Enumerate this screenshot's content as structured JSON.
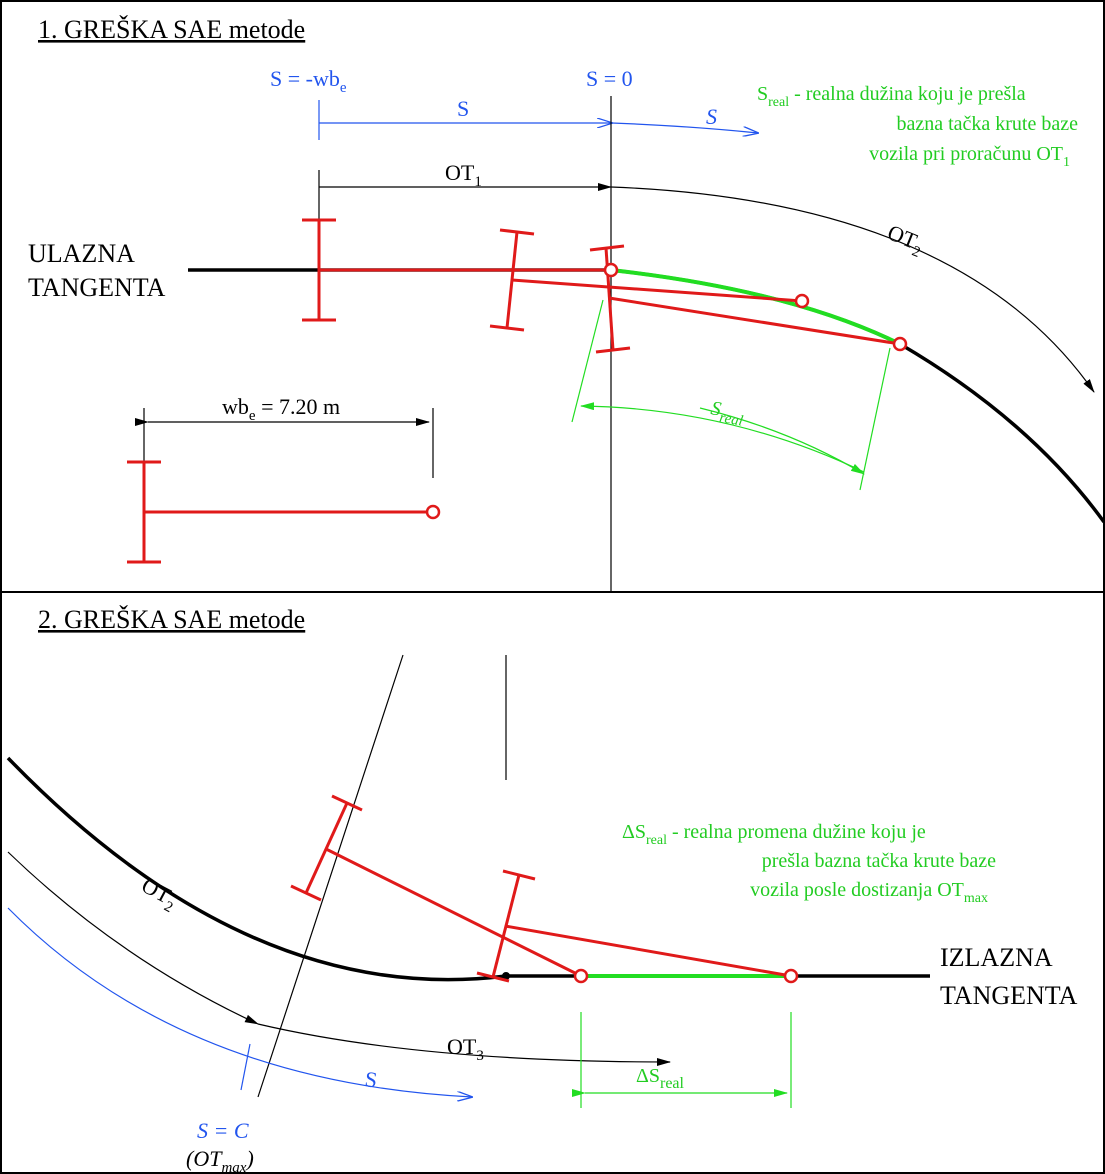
{
  "panel1": {
    "title": "1. GREŠKA SAE metode",
    "label_s_minus_main": "S = -wb",
    "label_s_minus_sub": "e",
    "label_s_zero": "S = 0",
    "label_s_mid": "S",
    "label_s_arc": "S",
    "label_ot1_main": "OT",
    "label_ot1_sub": "1",
    "label_ot2_main": "OT",
    "label_ot2_sub": "2",
    "entry_tangent_line1": "ULAZNA",
    "entry_tangent_line2": "TANGENTA",
    "wheelbase_main": "wb",
    "wheelbase_sub": "e",
    "wheelbase_value": " = 7.20 m",
    "sreal_dim_main": "S",
    "sreal_dim_sub": "real",
    "note_symbol_main": "S",
    "note_symbol_sub": "real",
    "note_line1": " - realna dužina koju je prešla",
    "note_line2": "bazna tačka krute baze",
    "note_line3_main": "vozila pri proračunu OT",
    "note_line3_sub": "1"
  },
  "panel2": {
    "title": "2. GREŠKA SAE metode",
    "label_ot2_main": "OT",
    "label_ot2_sub": "2",
    "label_ot3_main": "OT",
    "label_ot3_sub": "3",
    "label_s": "S",
    "label_sc": "S = C",
    "label_otmax_open": "(OT",
    "label_otmax_sub": "max",
    "label_otmax_close": ")",
    "exit_tangent_line1": "IZLAZNA",
    "exit_tangent_line2": "TANGENTA",
    "dsreal_dim_main": "ΔS",
    "dsreal_dim_sub": "real",
    "note_symbol_main": "ΔS",
    "note_symbol_sub": "real",
    "note_line1": " - realna promena dužine koju je",
    "note_line2": "prešla bazna tačka krute baze",
    "note_line3_main": "vozila posle dostizanja OT",
    "note_line3_sub": "max"
  },
  "colors": {
    "vehicle": "#e01a1a",
    "real_path": "#22dd22",
    "sae_distance": "#2255ee",
    "road": "#000000"
  }
}
